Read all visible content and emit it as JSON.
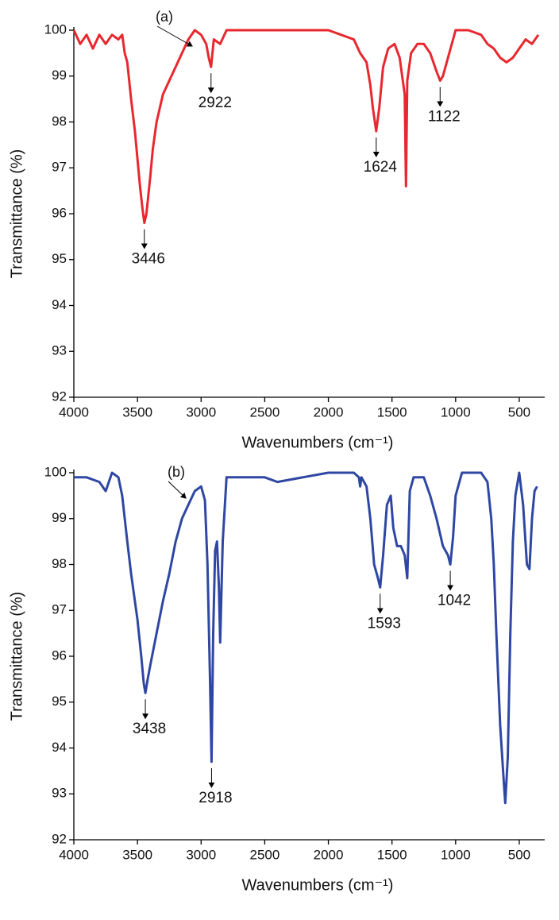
{
  "chart_data": [
    {
      "type": "line",
      "panel_label": "(a)",
      "y_label": "Transmittance (%)",
      "x_label": "Wavenumbers (cm⁻¹)",
      "color": "#e8282e",
      "xlim": [
        4000,
        300
      ],
      "ylim": [
        92,
        100
      ],
      "xticks": [
        4000,
        3500,
        3000,
        2500,
        2000,
        1500,
        1000,
        500
      ],
      "yticks": [
        92,
        93,
        94,
        95,
        96,
        97,
        98,
        99,
        100
      ],
      "x": [
        4000,
        3950,
        3900,
        3850,
        3800,
        3750,
        3700,
        3650,
        3620,
        3600,
        3580,
        3550,
        3520,
        3500,
        3480,
        3460,
        3446,
        3430,
        3400,
        3380,
        3350,
        3300,
        3250,
        3200,
        3150,
        3100,
        3050,
        3000,
        2960,
        2940,
        2922,
        2900,
        2850,
        2800,
        2500,
        2000,
        1900,
        1800,
        1750,
        1700,
        1670,
        1650,
        1624,
        1600,
        1570,
        1530,
        1480,
        1440,
        1400,
        1390,
        1380,
        1350,
        1300,
        1250,
        1200,
        1150,
        1122,
        1100,
        1050,
        1000,
        900,
        800,
        750,
        700,
        650,
        600,
        550,
        500,
        450,
        400,
        350
      ],
      "values": [
        100,
        99.7,
        99.9,
        99.6,
        99.9,
        99.7,
        99.9,
        99.8,
        99.9,
        99.5,
        99.3,
        98.5,
        97.8,
        97.2,
        96.6,
        96.1,
        95.8,
        96.0,
        96.8,
        97.4,
        98.0,
        98.6,
        98.9,
        99.2,
        99.5,
        99.8,
        100,
        99.9,
        99.7,
        99.4,
        99.2,
        99.8,
        99.7,
        100,
        100,
        100,
        99.9,
        99.8,
        99.5,
        99.3,
        98.8,
        98.3,
        97.8,
        98.3,
        99.2,
        99.6,
        99.7,
        99.4,
        98.6,
        96.6,
        98.9,
        99.5,
        99.7,
        99.7,
        99.5,
        99.1,
        98.9,
        99.0,
        99.5,
        100,
        100,
        99.9,
        99.7,
        99.6,
        99.4,
        99.3,
        99.4,
        99.6,
        99.8,
        99.7,
        99.9
      ],
      "peak_labels": [
        3446,
        2922,
        1624,
        1122
      ]
    },
    {
      "type": "line",
      "panel_label": "(b)",
      "y_label": "Transmittance (%)",
      "x_label": "Wavenumbers (cm⁻¹)",
      "color": "#2f47a3",
      "xlim": [
        4000,
        300
      ],
      "ylim": [
        92,
        100
      ],
      "xticks": [
        4000,
        3500,
        3000,
        2500,
        2000,
        1500,
        1000,
        500
      ],
      "yticks": [
        92,
        93,
        94,
        95,
        96,
        97,
        98,
        99,
        100
      ],
      "x": [
        4000,
        3900,
        3800,
        3750,
        3700,
        3650,
        3620,
        3580,
        3550,
        3500,
        3470,
        3450,
        3438,
        3420,
        3400,
        3350,
        3300,
        3250,
        3200,
        3150,
        3100,
        3050,
        3000,
        2970,
        2950,
        2930,
        2918,
        2905,
        2890,
        2875,
        2860,
        2850,
        2830,
        2800,
        2500,
        2400,
        2000,
        1800,
        1760,
        1750,
        1740,
        1700,
        1670,
        1640,
        1610,
        1593,
        1570,
        1540,
        1510,
        1490,
        1460,
        1430,
        1400,
        1380,
        1360,
        1330,
        1250,
        1200,
        1150,
        1100,
        1060,
        1042,
        1020,
        1000,
        950,
        800,
        750,
        720,
        700,
        680,
        650,
        620,
        610,
        590,
        570,
        550,
        530,
        500,
        470,
        440,
        420,
        400,
        380,
        360
      ],
      "values": [
        99.9,
        99.9,
        99.8,
        99.6,
        100,
        99.9,
        99.5,
        98.5,
        97.8,
        96.8,
        96.0,
        95.4,
        95.2,
        95.5,
        95.8,
        96.5,
        97.2,
        97.8,
        98.5,
        99.0,
        99.3,
        99.6,
        99.7,
        99.4,
        98.0,
        95.5,
        93.7,
        96.5,
        98.3,
        98.5,
        97.5,
        96.3,
        98.5,
        99.9,
        99.9,
        99.8,
        100,
        100,
        99.9,
        99.7,
        99.9,
        99.7,
        99.0,
        98.0,
        97.7,
        97.5,
        98.2,
        99.3,
        99.5,
        98.8,
        98.4,
        98.4,
        98.2,
        97.7,
        99.6,
        99.9,
        99.9,
        99.5,
        99.0,
        98.4,
        98.2,
        98.0,
        98.6,
        99.5,
        100,
        100,
        99.8,
        99.0,
        98.0,
        96.5,
        94.5,
        93.2,
        92.8,
        93.8,
        96.5,
        98.5,
        99.5,
        100,
        99.3,
        98.0,
        97.9,
        99.0,
        99.6,
        99.7
      ],
      "peak_labels": [
        3438,
        2918,
        1593,
        1042
      ]
    }
  ]
}
